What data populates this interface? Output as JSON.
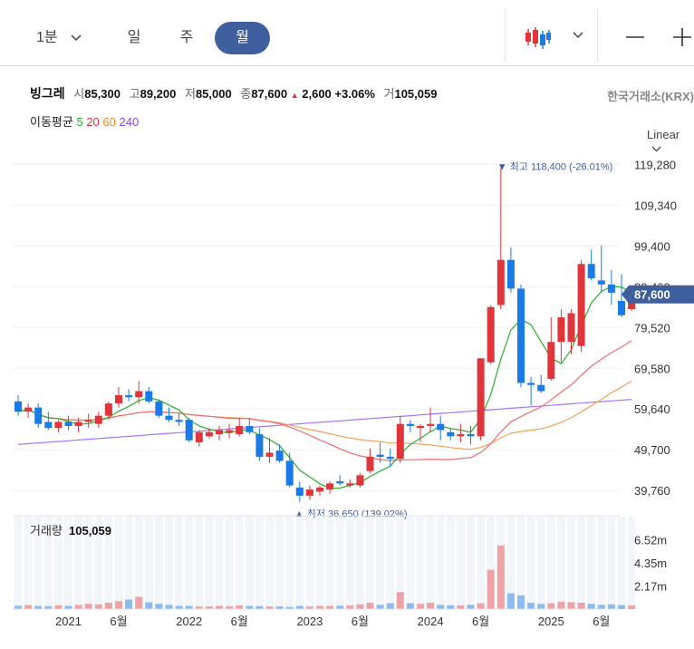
{
  "toolbar": {
    "periods": [
      "1분",
      "일",
      "주",
      "월"
    ],
    "active": "월",
    "candle_icon": "candlestick-icon",
    "minus_icon": "minus-icon",
    "plus_icon": "plus-icon"
  },
  "stock": {
    "name": "빙그레",
    "open_label": "시",
    "open": "85,300",
    "high_label": "고",
    "high": "89,200",
    "low_label": "저",
    "low": "85,000",
    "close_label": "종",
    "close": "87,600",
    "change": "2,600",
    "change_pct": "+3.06%",
    "volume_label": "거",
    "volume": "105,059",
    "exchange": "한국거래소(KRX)"
  },
  "ma": {
    "label": "이동평균",
    "periods": [
      {
        "label": "5",
        "color": "#2bb02b"
      },
      {
        "label": "20",
        "color": "#e0353b"
      },
      {
        "label": "60",
        "color": "#f08a24"
      },
      {
        "label": "240",
        "color": "#8a3ff0"
      }
    ]
  },
  "scale_label": "Linear",
  "colors": {
    "up": "#e0353b",
    "down": "#1a7ae6",
    "up_vol": "#f0a3a6",
    "down_vol": "#8cbcf0",
    "badge": "#3e5e9e"
  },
  "chart_data": {
    "type": "candlestick",
    "ylim": [
      34500,
      124000
    ],
    "y_ticks": [
      119280,
      109340,
      99400,
      89460,
      79520,
      69580,
      59640,
      49700,
      39760
    ],
    "y_tick_labels": [
      "119,280",
      "109,340",
      "99,400",
      "89,460",
      "79,520",
      "69,580",
      "59,640",
      "49,700",
      "39,760"
    ],
    "x_labels": [
      "2021",
      "6월",
      "2022",
      "6월",
      "2023",
      "6월",
      "2024",
      "6월",
      "2025",
      "6월"
    ],
    "x_label_index": [
      5,
      10,
      17,
      22,
      29,
      34,
      41,
      46,
      53,
      58
    ],
    "current_price": "87,600",
    "max_label": "▼ 최고 118,400 (-26.01%)",
    "min_label": "▲ 최저 36,650 (139.02%)",
    "candles": [
      [
        61500,
        63000,
        58000,
        59000
      ],
      [
        59000,
        61000,
        57500,
        60000
      ],
      [
        60000,
        61000,
        55000,
        56000
      ],
      [
        56500,
        59000,
        54500,
        55000
      ],
      [
        55000,
        57000,
        54000,
        56500
      ],
      [
        56500,
        58000,
        54500,
        55500
      ],
      [
        55500,
        57500,
        54000,
        56500
      ],
      [
        56500,
        58500,
        55000,
        57000
      ],
      [
        56000,
        59000,
        55000,
        58000
      ],
      [
        58000,
        61500,
        57000,
        61000
      ],
      [
        61000,
        65000,
        60000,
        63000
      ],
      [
        63000,
        64500,
        61500,
        62500
      ],
      [
        62500,
        66500,
        61000,
        64000
      ],
      [
        64000,
        65000,
        61000,
        61500
      ],
      [
        61500,
        62000,
        57500,
        58000
      ],
      [
        58000,
        60000,
        56500,
        57000
      ],
      [
        57000,
        58500,
        55500,
        56500
      ],
      [
        57000,
        57500,
        51500,
        52000
      ],
      [
        51500,
        54500,
        50500,
        54000
      ],
      [
        53000,
        55000,
        52500,
        54000
      ],
      [
        53500,
        55500,
        52000,
        54500
      ],
      [
        54000,
        56000,
        52500,
        54500
      ],
      [
        53500,
        57500,
        53000,
        55500
      ],
      [
        55500,
        57500,
        53500,
        54000
      ],
      [
        53500,
        55000,
        47000,
        48000
      ],
      [
        48000,
        52500,
        46500,
        49000
      ],
      [
        49500,
        51000,
        46500,
        47000
      ],
      [
        47000,
        49000,
        40500,
        41000
      ],
      [
        40500,
        42000,
        37000,
        38500
      ],
      [
        38500,
        41000,
        37500,
        40000
      ],
      [
        39500,
        41000,
        38500,
        40500
      ],
      [
        40000,
        42000,
        39000,
        41500
      ],
      [
        42000,
        43500,
        41000,
        41500
      ],
      [
        41000,
        42500,
        40500,
        41500
      ],
      [
        41000,
        44000,
        40500,
        43500
      ],
      [
        44500,
        50000,
        44000,
        48000
      ],
      [
        48500,
        51500,
        46500,
        48000
      ],
      [
        48000,
        50000,
        45500,
        47500
      ],
      [
        47500,
        58000,
        46500,
        56000
      ],
      [
        56000,
        57000,
        54000,
        55500
      ],
      [
        55000,
        56000,
        51500,
        55500
      ],
      [
        55500,
        60000,
        54000,
        56000
      ],
      [
        56000,
        58000,
        52000,
        54500
      ],
      [
        54000,
        55000,
        52000,
        53000
      ],
      [
        53000,
        56000,
        51500,
        53500
      ],
      [
        53500,
        55500,
        51000,
        53000
      ],
      [
        53000,
        72000,
        52000,
        72000
      ],
      [
        71000,
        85000,
        70500,
        84500
      ],
      [
        85000,
        118400,
        84000,
        96000
      ],
      [
        96000,
        99000,
        88000,
        89000
      ],
      [
        89000,
        90000,
        65000,
        66000
      ],
      [
        66000,
        67500,
        60500,
        65500
      ],
      [
        65500,
        68000,
        63500,
        64000
      ],
      [
        67000,
        82000,
        66500,
        76000
      ],
      [
        76000,
        84000,
        71000,
        82000
      ],
      [
        76000,
        84000,
        73000,
        83000
      ],
      [
        75000,
        96000,
        73500,
        95000
      ],
      [
        95000,
        98500,
        91000,
        91500
      ],
      [
        91000,
        99500,
        88000,
        90000
      ],
      [
        90000,
        93500,
        85000,
        88000
      ],
      [
        86000,
        92500,
        82000,
        82500
      ],
      [
        84000,
        89200,
        83500,
        87600
      ]
    ],
    "volumes": [
      0.32,
      0.38,
      0.3,
      0.28,
      0.35,
      0.3,
      0.4,
      0.5,
      0.45,
      0.6,
      0.75,
      0.9,
      1.15,
      0.65,
      0.5,
      0.4,
      0.3,
      0.3,
      0.25,
      0.25,
      0.3,
      0.28,
      0.35,
      0.3,
      0.28,
      0.25,
      0.25,
      0.2,
      0.3,
      0.25,
      0.3,
      0.3,
      0.32,
      0.35,
      0.45,
      0.6,
      0.4,
      0.55,
      1.6,
      0.55,
      0.5,
      0.6,
      0.4,
      0.35,
      0.35,
      0.4,
      0.55,
      3.7,
      6.0,
      1.5,
      1.3,
      0.6,
      0.5,
      0.55,
      0.7,
      0.65,
      0.6,
      0.5,
      0.4,
      0.45,
      0.38,
      0.35
    ],
    "volume_ticks": [
      "6.52m",
      "4.35m",
      "2.17m"
    ],
    "volume_label": "거래량",
    "volume_value": "105,059"
  }
}
